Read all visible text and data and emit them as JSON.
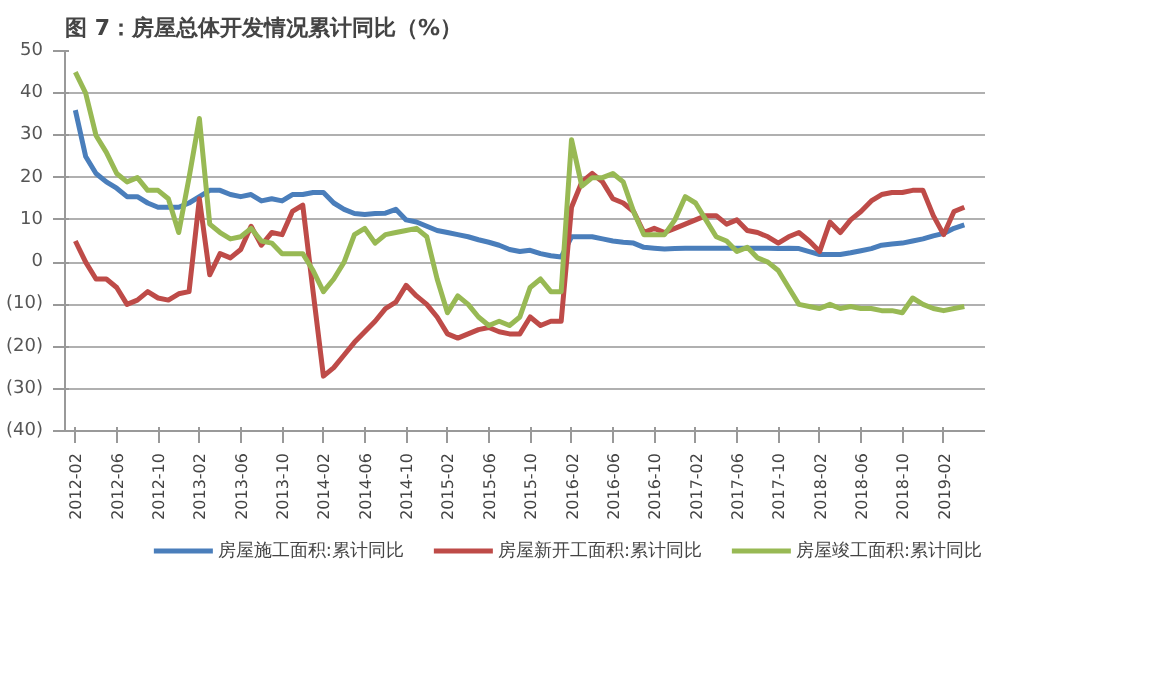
{
  "chart_data": {
    "type": "line",
    "title": "图 7：房屋总体开发情况累计同比（%）",
    "categories": [
      "2012-02",
      null,
      null,
      null,
      "2012-06",
      null,
      null,
      null,
      "2012-10",
      null,
      null,
      null,
      "2013-02",
      null,
      null,
      null,
      "2013-06",
      null,
      null,
      null,
      "2013-10",
      null,
      null,
      null,
      "2014-02",
      null,
      null,
      null,
      "2014-06",
      null,
      null,
      null,
      "2014-10",
      null,
      null,
      null,
      "2015-02",
      null,
      null,
      null,
      "2015-06",
      null,
      null,
      null,
      "2015-10",
      null,
      null,
      null,
      "2016-02",
      null,
      null,
      null,
      "2016-06",
      null,
      null,
      null,
      "2016-10",
      null,
      null,
      null,
      "2017-02",
      null,
      null,
      null,
      "2017-06",
      null,
      null,
      null,
      "2017-10",
      null,
      null,
      null,
      "2018-02",
      null,
      null,
      null,
      "2018-06",
      null,
      null,
      null,
      "2018-10",
      null,
      null,
      null,
      "2019-02",
      null,
      null
    ],
    "series": [
      {
        "name": "房屋施工面积:累计同比",
        "color": "#4a7ebb",
        "values": [
          36,
          25,
          21,
          19,
          17.5,
          15.5,
          15.5,
          14,
          13,
          13,
          13,
          14,
          15.5,
          17,
          17,
          16,
          15.5,
          16,
          14.5,
          15,
          14.5,
          16,
          16,
          16.5,
          16.5,
          14,
          12.5,
          11.5,
          11.3,
          11.5,
          11.6,
          12.5,
          10,
          9.5,
          8.5,
          7.5,
          7,
          6.5,
          6,
          5.3,
          4.7,
          4,
          3,
          2.5,
          2.8,
          2,
          1.5,
          1.2,
          6,
          6,
          6,
          5.5,
          5,
          4.7,
          4.5,
          3.5,
          3.3,
          3.1,
          3.2,
          3.3,
          3.3,
          3.3,
          3.3,
          3.3,
          3.3,
          3.3,
          3.3,
          3.3,
          3.2,
          3.3,
          3.2,
          2.5,
          1.8,
          1.8,
          1.8,
          2.2,
          2.7,
          3.2,
          4,
          4.3,
          4.5,
          5,
          5.5,
          6.2,
          6.8,
          8,
          8.8
        ]
      },
      {
        "name": "房屋新开工面积:累计同比",
        "color": "#be4b48",
        "values": [
          5,
          0,
          -4,
          -4,
          -6,
          -10,
          -9,
          -7,
          -8.5,
          -9,
          -7.5,
          -7,
          15,
          -3,
          2,
          1,
          3,
          8.5,
          4,
          7,
          6.5,
          12,
          13.5,
          -7,
          -27,
          -25,
          -22,
          -19,
          -16.5,
          -14,
          -11,
          -9.5,
          -5.5,
          -8,
          -10,
          -13,
          -17,
          -18,
          -17,
          -16,
          -15.5,
          -16.5,
          -17,
          -17,
          -13,
          -15,
          -14,
          -14,
          13,
          19,
          21,
          19,
          15,
          14,
          12,
          7,
          8,
          7,
          8,
          9,
          10,
          11,
          11,
          9,
          10,
          7.5,
          7,
          6,
          4.5,
          6,
          7,
          5,
          2.5,
          9.5,
          7,
          10,
          12,
          14.5,
          16,
          16.5,
          16.5,
          17,
          17,
          11,
          6.5,
          12,
          13
        ]
      },
      {
        "name": "房屋竣工面积:累计同比",
        "color": "#98b954",
        "values": [
          45,
          40,
          30,
          26,
          21,
          19,
          20,
          17,
          17,
          15,
          7,
          20,
          34,
          9,
          7,
          5.5,
          6,
          8,
          5,
          4.5,
          2,
          2,
          2,
          -2,
          -7,
          -4,
          0,
          6.5,
          8,
          4.5,
          6.5,
          7,
          7.5,
          8,
          6,
          -4,
          -12,
          -8,
          -10,
          -13,
          -15,
          -14,
          -15,
          -13,
          -6,
          -4,
          -7,
          -7,
          29,
          18,
          20,
          20,
          21,
          19,
          12,
          6.5,
          6.5,
          6.5,
          10,
          15.5,
          14,
          10,
          6,
          5,
          2.5,
          3.5,
          1,
          0,
          -2,
          -6,
          -10,
          -10.5,
          -11,
          -10,
          -11,
          -10.5,
          -11,
          -11,
          -11.5,
          -11.5,
          -12,
          -8.5,
          -10,
          -11,
          -11.5,
          -11,
          -10.5
        ]
      }
    ],
    "ylim": [
      -40,
      50
    ],
    "yticks": [
      {
        "value": -40,
        "label": "(40)"
      },
      {
        "value": -30,
        "label": "(30)"
      },
      {
        "value": -20,
        "label": "(20)"
      },
      {
        "value": -10,
        "label": "(10)"
      },
      0,
      10,
      20,
      30,
      40,
      50
    ],
    "grid": "y",
    "legend": "bottom",
    "marker": "none",
    "line_style": "solid"
  }
}
